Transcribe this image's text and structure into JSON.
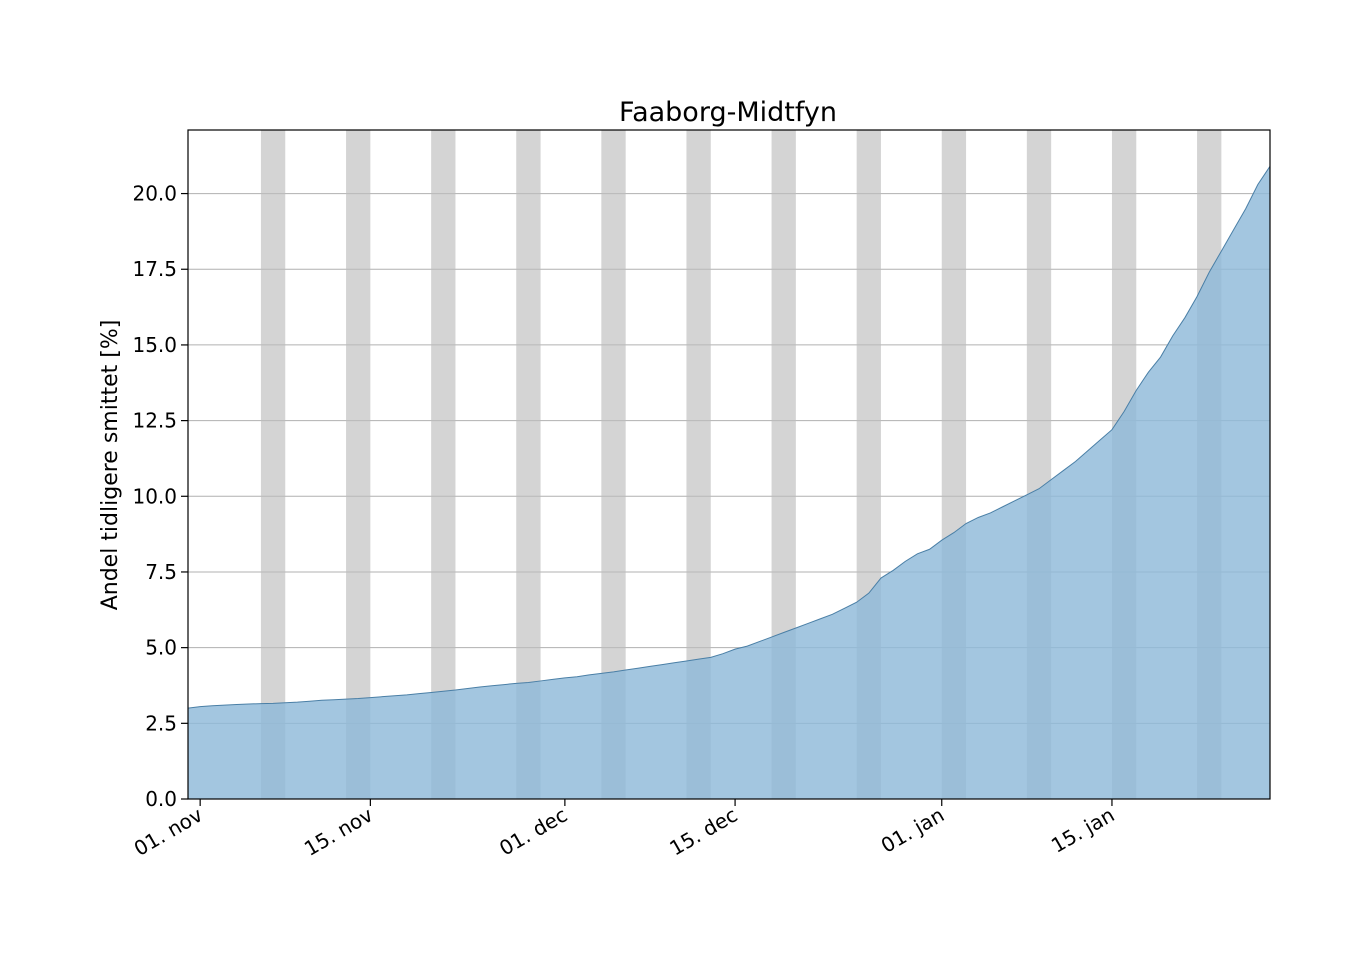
{
  "chart_data": {
    "type": "area",
    "title": "Faaborg-Midtfyn",
    "xlabel": "",
    "ylabel": "Andel tidligere smittet [%]",
    "x_start": "2021-10-31",
    "x_end": "2022-01-28",
    "ylim": [
      0,
      22.1
    ],
    "yticks": [
      0.0,
      2.5,
      5.0,
      7.5,
      10.0,
      12.5,
      15.0,
      17.5,
      20.0
    ],
    "ytick_labels": [
      "0.0",
      "2.5",
      "5.0",
      "7.5",
      "10.0",
      "12.5",
      "15.0",
      "17.5",
      "20.0"
    ],
    "xticks": [
      "2021-11-01",
      "2021-11-15",
      "2021-12-01",
      "2021-12-15",
      "2022-01-01",
      "2022-01-15"
    ],
    "xtick_labels": [
      "01. nov",
      "15. nov",
      "01. dec",
      "15. dec",
      "01. jan",
      "15. jan"
    ],
    "grid": "horizontal",
    "weekend_bands": [
      [
        "2021-11-06",
        "2021-11-08"
      ],
      [
        "2021-11-13",
        "2021-11-15"
      ],
      [
        "2021-11-20",
        "2021-11-22"
      ],
      [
        "2021-11-27",
        "2021-11-29"
      ],
      [
        "2021-12-04",
        "2021-12-06"
      ],
      [
        "2021-12-11",
        "2021-12-13"
      ],
      [
        "2021-12-18",
        "2021-12-20"
      ],
      [
        "2021-12-25",
        "2021-12-27"
      ],
      [
        "2022-01-01",
        "2022-01-03"
      ],
      [
        "2022-01-08",
        "2022-01-10"
      ],
      [
        "2022-01-15",
        "2022-01-17"
      ],
      [
        "2022-01-22",
        "2022-01-24"
      ],
      [
        "2022-01-29",
        "2022-01-31"
      ]
    ],
    "series": [
      {
        "x": [
          "2021-10-31",
          "2021-11-01",
          "2021-11-02",
          "2021-11-03",
          "2021-11-04",
          "2021-11-05",
          "2021-11-06",
          "2021-11-07",
          "2021-11-08",
          "2021-11-09",
          "2021-11-10",
          "2021-11-11",
          "2021-11-12",
          "2021-11-13",
          "2021-11-14",
          "2021-11-15",
          "2021-11-16",
          "2021-11-17",
          "2021-11-18",
          "2021-11-19",
          "2021-11-20",
          "2021-11-21",
          "2021-11-22",
          "2021-11-23",
          "2021-11-24",
          "2021-11-25",
          "2021-11-26",
          "2021-11-27",
          "2021-11-28",
          "2021-11-29",
          "2021-11-30",
          "2021-12-01",
          "2021-12-02",
          "2021-12-03",
          "2021-12-04",
          "2021-12-05",
          "2021-12-06",
          "2021-12-07",
          "2021-12-08",
          "2021-12-09",
          "2021-12-10",
          "2021-12-11",
          "2021-12-12",
          "2021-12-13",
          "2021-12-14",
          "2021-12-15",
          "2021-12-16",
          "2021-12-17",
          "2021-12-18",
          "2021-12-19",
          "2021-12-20",
          "2021-12-21",
          "2021-12-22",
          "2021-12-23",
          "2021-12-24",
          "2021-12-25",
          "2021-12-26",
          "2021-12-27",
          "2021-12-28",
          "2021-12-29",
          "2021-12-30",
          "2021-12-31",
          "2022-01-01",
          "2022-01-02",
          "2022-01-03",
          "2022-01-04",
          "2022-01-05",
          "2022-01-06",
          "2022-01-07",
          "2022-01-08",
          "2022-01-09",
          "2022-01-10",
          "2022-01-11",
          "2022-01-12",
          "2022-01-13",
          "2022-01-14",
          "2022-01-15",
          "2022-01-16",
          "2022-01-17",
          "2022-01-18",
          "2022-01-19",
          "2022-01-20",
          "2022-01-21",
          "2022-01-22",
          "2022-01-23",
          "2022-01-24",
          "2022-01-25",
          "2022-01-26",
          "2022-01-27",
          "2022-01-28"
        ],
        "values": [
          3.0,
          3.05,
          3.08,
          3.1,
          3.12,
          3.14,
          3.15,
          3.16,
          3.18,
          3.2,
          3.23,
          3.26,
          3.28,
          3.3,
          3.32,
          3.35,
          3.38,
          3.41,
          3.44,
          3.48,
          3.52,
          3.56,
          3.6,
          3.65,
          3.7,
          3.74,
          3.78,
          3.82,
          3.85,
          3.9,
          3.95,
          4.0,
          4.04,
          4.1,
          4.15,
          4.2,
          4.26,
          4.32,
          4.38,
          4.44,
          4.5,
          4.56,
          4.62,
          4.68,
          4.8,
          4.95,
          5.05,
          5.2,
          5.35,
          5.5,
          5.65,
          5.8,
          5.95,
          6.1,
          6.3,
          6.5,
          6.8,
          7.3,
          7.55,
          7.85,
          8.1,
          8.25,
          8.55,
          8.8,
          9.1,
          9.3,
          9.45,
          9.65,
          9.85,
          10.05,
          10.25,
          10.55,
          10.85,
          11.15,
          11.5,
          11.85,
          12.2,
          12.8,
          13.5,
          14.1,
          14.6,
          15.3,
          15.9,
          16.6,
          17.4,
          18.1,
          18.8,
          19.5,
          20.3,
          20.9
        ]
      }
    ],
    "colors": {
      "area_fill": "#8fb9d9",
      "area_edge": "#4a7fa6",
      "band_fill": "#bdbdbd",
      "grid": "#b0b0b0"
    }
  }
}
